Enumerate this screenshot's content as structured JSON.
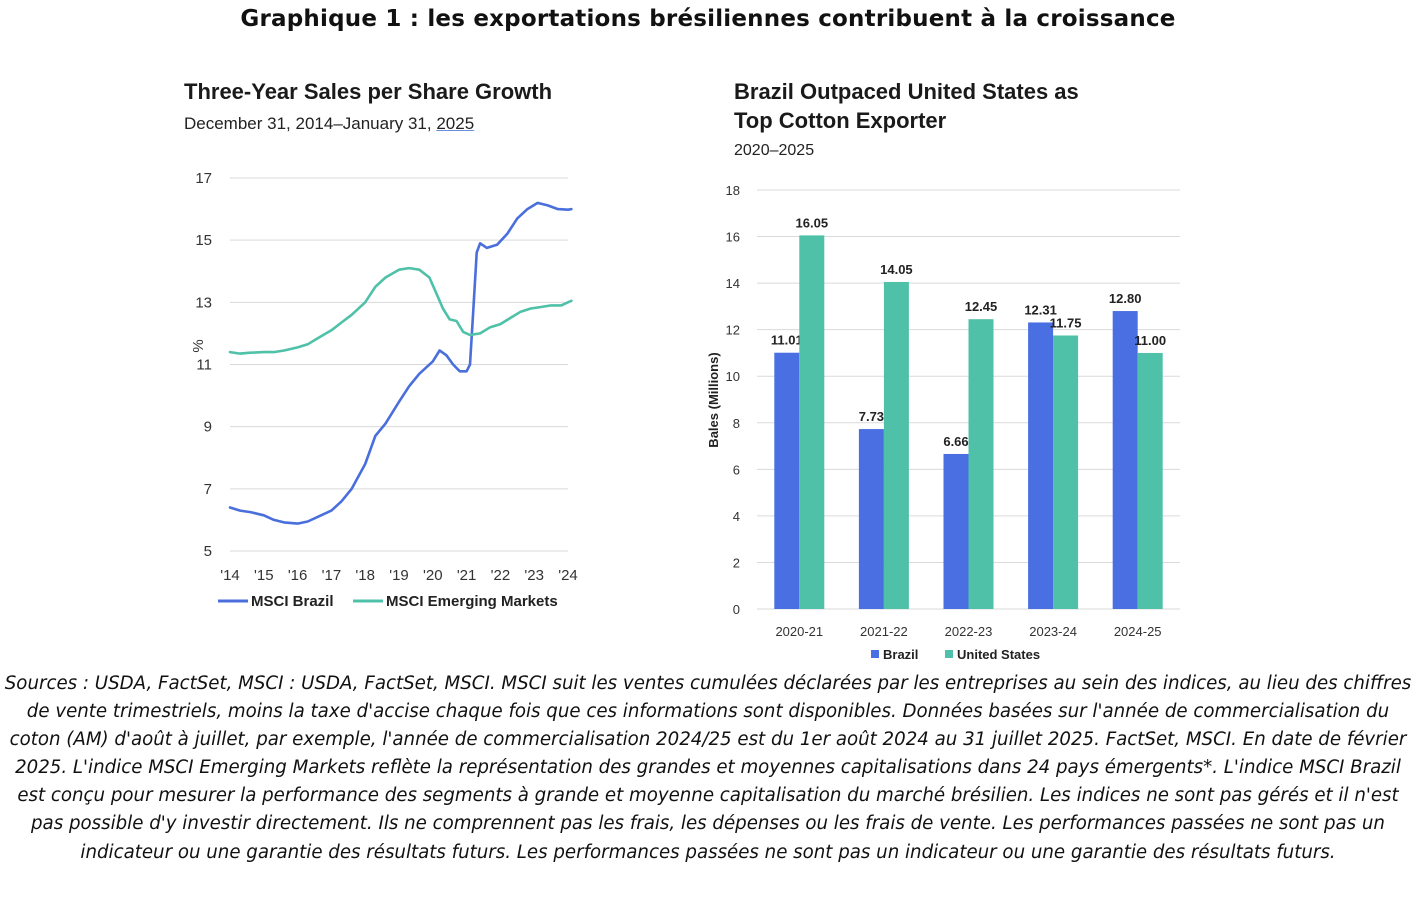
{
  "main_title": "Graphique 1 : les exportations brésiliennes contribuent à la croissance",
  "left": {
    "title": "Three-Year Sales per Share Growth",
    "subtitle_prefix": "December 31, 2014–January 31, ",
    "subtitle_year": "2025"
  },
  "right": {
    "title_line1": "Brazil Outpaced United States as",
    "title_line2": "Top Cotton Exporter",
    "subtitle": "2020–2025"
  },
  "footnote": "Sources : USDA, FactSet, MSCI : USDA, FactSet, MSCI. MSCI suit les ventes cumulées déclarées par les entreprises au sein des indices, au lieu des chiffres de vente trimestriels, moins la taxe d'accise chaque fois que ces informations sont disponibles. Données basées sur l'année de commercialisation du coton (AM) d'août à juillet, par exemple, l'année de commercialisation 2024/25 est du 1er août 2024 au 31 juillet 2025. FactSet, MSCI. En date de février 2025. L'indice MSCI Emerging Markets reflète la représentation des grandes et moyennes capitalisations dans 24 pays émergents*. L'indice MSCI Brazil est conçu pour mesurer la performance des segments à grande et moyenne capitalisation du marché brésilien. Les indices ne sont pas gérés et il n'est pas possible d'y investir directement. Ils ne comprennent pas les frais, les dépenses ou les frais de vente. Les performances passées ne sont pas un indicateur ou une garantie des résultats futurs. Les performances passées ne sont pas un indicateur ou une garantie des résultats futurs.",
  "chart_data": [
    {
      "type": "line",
      "title": "Three-Year Sales per Share Growth",
      "subtitle": "December 31, 2014–January 31, 2025",
      "xlabel": "",
      "ylabel": "%",
      "xlim": [
        2014,
        2024
      ],
      "ylim": [
        5,
        17
      ],
      "yticks": [
        5,
        7,
        9,
        11,
        13,
        15,
        17
      ],
      "xticks": [
        2014,
        2015,
        2016,
        2017,
        2018,
        2019,
        2020,
        2021,
        2022,
        2023,
        2024
      ],
      "xtick_labels": [
        "'14",
        "'15",
        "'16",
        "'17",
        "'18",
        "'19",
        "'20",
        "'21",
        "'22",
        "'23",
        "'24"
      ],
      "grid": "horizontal",
      "legend": "bottom",
      "series": [
        {
          "name": "MSCI Brazil",
          "color": "#4a6fdc",
          "points": [
            [
              2014.0,
              6.4
            ],
            [
              2014.3,
              6.3
            ],
            [
              2014.6,
              6.25
            ],
            [
              2015.0,
              6.15
            ],
            [
              2015.3,
              6.0
            ],
            [
              2015.6,
              5.92
            ],
            [
              2016.0,
              5.88
            ],
            [
              2016.3,
              5.95
            ],
            [
              2016.6,
              6.1
            ],
            [
              2017.0,
              6.3
            ],
            [
              2017.3,
              6.6
            ],
            [
              2017.6,
              7.0
            ],
            [
              2018.0,
              7.8
            ],
            [
              2018.3,
              8.7
            ],
            [
              2018.6,
              9.1
            ],
            [
              2019.0,
              9.8
            ],
            [
              2019.3,
              10.3
            ],
            [
              2019.6,
              10.7
            ],
            [
              2020.0,
              11.1
            ],
            [
              2020.2,
              11.45
            ],
            [
              2020.4,
              11.3
            ],
            [
              2020.6,
              11.0
            ],
            [
              2020.8,
              10.78
            ],
            [
              2021.0,
              10.78
            ],
            [
              2021.1,
              11.0
            ],
            [
              2021.2,
              12.8
            ],
            [
              2021.3,
              14.6
            ],
            [
              2021.4,
              14.9
            ],
            [
              2021.6,
              14.75
            ],
            [
              2021.9,
              14.85
            ],
            [
              2022.2,
              15.2
            ],
            [
              2022.5,
              15.7
            ],
            [
              2022.8,
              16.0
            ],
            [
              2023.1,
              16.2
            ],
            [
              2023.4,
              16.12
            ],
            [
              2023.7,
              16.0
            ],
            [
              2024.0,
              15.98
            ],
            [
              2024.1,
              16.0
            ]
          ]
        },
        {
          "name": "MSCI Emerging Markets",
          "color": "#4fc1a8",
          "points": [
            [
              2014.0,
              11.4
            ],
            [
              2014.3,
              11.35
            ],
            [
              2014.6,
              11.38
            ],
            [
              2015.0,
              11.4
            ],
            [
              2015.3,
              11.4
            ],
            [
              2015.6,
              11.45
            ],
            [
              2016.0,
              11.55
            ],
            [
              2016.3,
              11.65
            ],
            [
              2016.6,
              11.85
            ],
            [
              2017.0,
              12.1
            ],
            [
              2017.3,
              12.35
            ],
            [
              2017.6,
              12.6
            ],
            [
              2018.0,
              13.0
            ],
            [
              2018.3,
              13.5
            ],
            [
              2018.6,
              13.8
            ],
            [
              2019.0,
              14.05
            ],
            [
              2019.3,
              14.1
            ],
            [
              2019.6,
              14.05
            ],
            [
              2019.9,
              13.8
            ],
            [
              2020.1,
              13.3
            ],
            [
              2020.3,
              12.8
            ],
            [
              2020.5,
              12.45
            ],
            [
              2020.7,
              12.4
            ],
            [
              2020.9,
              12.05
            ],
            [
              2021.1,
              11.95
            ],
            [
              2021.4,
              12.0
            ],
            [
              2021.7,
              12.2
            ],
            [
              2022.0,
              12.3
            ],
            [
              2022.3,
              12.5
            ],
            [
              2022.6,
              12.7
            ],
            [
              2022.9,
              12.8
            ],
            [
              2023.2,
              12.85
            ],
            [
              2023.5,
              12.9
            ],
            [
              2023.8,
              12.9
            ],
            [
              2024.0,
              13.0
            ],
            [
              2024.1,
              13.05
            ]
          ]
        }
      ]
    },
    {
      "type": "bar",
      "title": "Brazil Outpaced United States as Top Cotton Exporter",
      "subtitle": "2020–2025",
      "xlabel": "",
      "ylabel": "Bales (Millions)",
      "ylim": [
        0,
        18
      ],
      "yticks": [
        0,
        2,
        4,
        6,
        8,
        10,
        12,
        14,
        16,
        18
      ],
      "grid": "horizontal",
      "legend": "bottom",
      "categories": [
        "2020-21",
        "2021-22",
        "2022-23",
        "2023-24",
        "2024-25"
      ],
      "series": [
        {
          "name": "Brazil",
          "color": "#4a6fe3",
          "values": [
            11.01,
            7.73,
            6.66,
            12.31,
            12.8
          ],
          "labels": [
            "11.01",
            "7.73",
            "6.66",
            "12.31",
            "12.80"
          ]
        },
        {
          "name": "United States",
          "color": "#4fc1a8",
          "values": [
            16.05,
            14.05,
            12.45,
            11.75,
            11.0
          ],
          "labels": [
            "16.05",
            "14.05",
            "12.45",
            "11.75",
            "11.00"
          ]
        }
      ]
    }
  ]
}
